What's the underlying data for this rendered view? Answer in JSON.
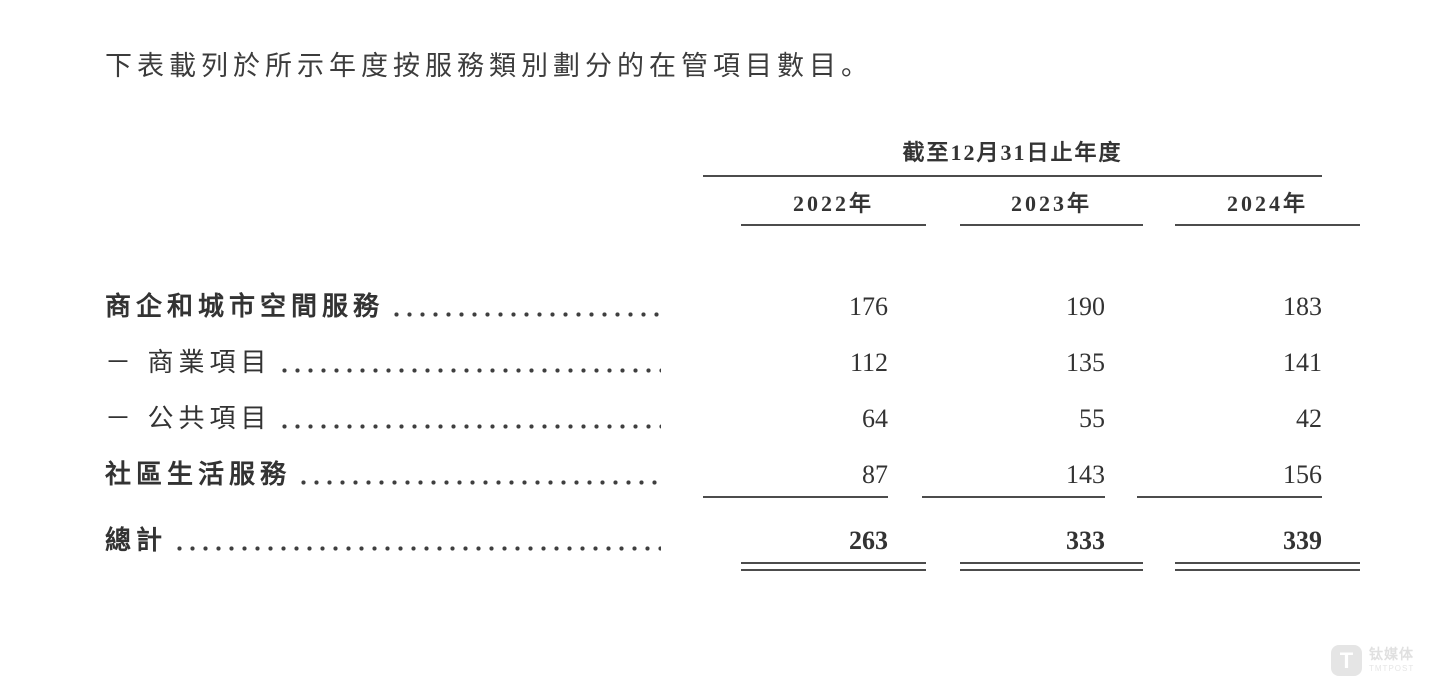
{
  "page": {
    "intro_text": "下表載列於所示年度按服務類別劃分的在管項目數目。"
  },
  "table": {
    "spanning_header": "截至12月31日止年度",
    "columns": [
      "2022年",
      "2023年",
      "2024年"
    ],
    "rows": [
      {
        "label": "商企和城市空間服務",
        "label_bold": true,
        "values_bold": false,
        "rule": "none",
        "values": [
          "176",
          "190",
          "183"
        ]
      },
      {
        "label": "－ 商業項目",
        "label_bold": false,
        "values_bold": false,
        "rule": "none",
        "values": [
          "112",
          "135",
          "141"
        ]
      },
      {
        "label": "－ 公共項目",
        "label_bold": false,
        "values_bold": false,
        "rule": "none",
        "values": [
          "64",
          "55",
          "42"
        ]
      },
      {
        "label": "社區生活服務",
        "label_bold": true,
        "values_bold": false,
        "rule": "single",
        "values": [
          "87",
          "143",
          "156"
        ]
      },
      {
        "label": "總計",
        "label_bold": true,
        "values_bold": true,
        "rule": "double",
        "values": [
          "263",
          "333",
          "339"
        ]
      }
    ]
  },
  "watermark": {
    "logo_letter": "T",
    "name_cn": "钛媒体",
    "name_en": "TMTPOST"
  }
}
